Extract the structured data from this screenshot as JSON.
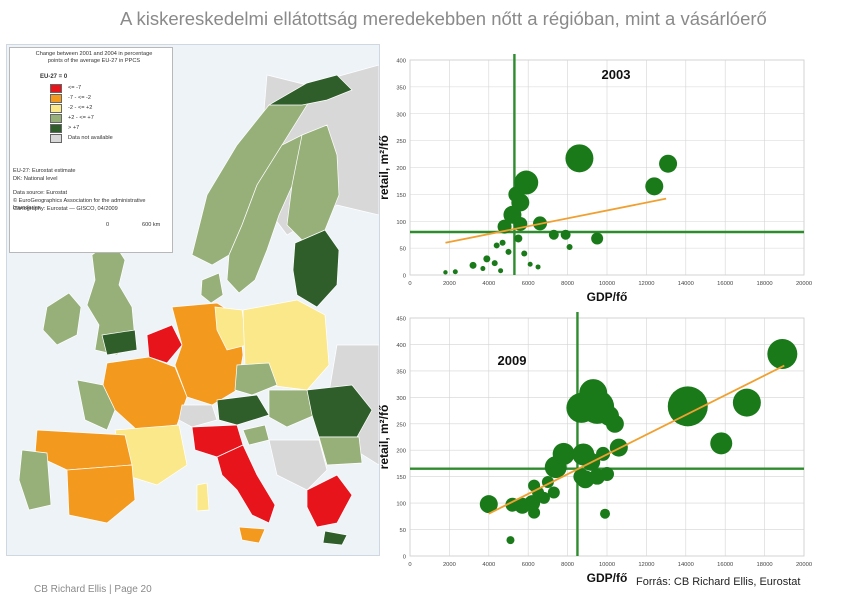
{
  "slide": {
    "title": "A kiskereskedelmi ellátottság meredekebben nőtt a régióban, mint a vásárlóerő",
    "footer_left": "CB Richard Ellis | Page 20",
    "footer_right": "Forrás: CB Richard Ellis, Eurostat"
  },
  "map": {
    "legend_header": "Change between 2001 and 2004 in percentage points of the average EU-27 in PPCS",
    "legend_subtitle": "EU-27 = 0",
    "legend_items": [
      {
        "label": "<= -7",
        "color": "#e8141c"
      },
      {
        "label": "-7 - <= -2",
        "color": "#f39a1e"
      },
      {
        "label": "-2 - <= +2",
        "color": "#fbe88a"
      },
      {
        "label": "+2 - <= +7",
        "color": "#97b07a"
      },
      {
        "label": "> +7",
        "color": "#2f5e2a"
      },
      {
        "label": "Data not available",
        "color": "#d8d8d8"
      }
    ],
    "notes": [
      "EU-27: Eurostat estimate",
      "DK: National level",
      "Data source: Eurostat",
      "© EuroGeographics Association for the administrative boundaries",
      "Cartography: Eurostat — GISCO, 04/2009"
    ],
    "scale_label": "600 km",
    "scale_zero": "0",
    "colors": {
      "sea": "#eef3f8",
      "outside": "#d8d8d8",
      "border": "#ffffff"
    }
  },
  "chart_data": [
    {
      "type": "scatter",
      "title": "2003",
      "xlabel": "GDP/fő",
      "ylabel": "retail, m²/fő",
      "xlim": [
        0,
        20000
      ],
      "ylim": [
        0,
        400
      ],
      "xticks": [
        0,
        2000,
        4000,
        6000,
        8000,
        10000,
        12000,
        14000,
        16000,
        18000,
        20000
      ],
      "yticks": [
        0,
        50,
        100,
        150,
        200,
        250,
        300,
        350,
        400
      ],
      "grid": true,
      "reference_lines": {
        "x": 5300,
        "y": 80
      },
      "trendline": {
        "x": [
          1800,
          13000
        ],
        "y": [
          60,
          142
        ]
      },
      "point_color": "#1a7a1a",
      "trend_color": "#f0a030",
      "ref_color": "#2e8b2e",
      "points": [
        {
          "x": 1800,
          "y": 5,
          "r": 2.2
        },
        {
          "x": 2300,
          "y": 6,
          "r": 2.5
        },
        {
          "x": 3200,
          "y": 18,
          "r": 3.5
        },
        {
          "x": 3900,
          "y": 30,
          "r": 3.5
        },
        {
          "x": 3700,
          "y": 12,
          "r": 2.5
        },
        {
          "x": 4300,
          "y": 22,
          "r": 3
        },
        {
          "x": 4600,
          "y": 8,
          "r": 2.5
        },
        {
          "x": 4400,
          "y": 55,
          "r": 3
        },
        {
          "x": 4700,
          "y": 60,
          "r": 3
        },
        {
          "x": 5000,
          "y": 43,
          "r": 3
        },
        {
          "x": 4800,
          "y": 90,
          "r": 7
        },
        {
          "x": 5200,
          "y": 112,
          "r": 9
        },
        {
          "x": 5600,
          "y": 135,
          "r": 9
        },
        {
          "x": 5400,
          "y": 150,
          "r": 8
        },
        {
          "x": 5900,
          "y": 172,
          "r": 12
        },
        {
          "x": 5600,
          "y": 95,
          "r": 7
        },
        {
          "x": 5500,
          "y": 68,
          "r": 4
        },
        {
          "x": 5800,
          "y": 40,
          "r": 3
        },
        {
          "x": 6100,
          "y": 20,
          "r": 2.5
        },
        {
          "x": 6500,
          "y": 15,
          "r": 2.5
        },
        {
          "x": 6600,
          "y": 96,
          "r": 7
        },
        {
          "x": 7300,
          "y": 75,
          "r": 5
        },
        {
          "x": 7900,
          "y": 75,
          "r": 5
        },
        {
          "x": 8100,
          "y": 52,
          "r": 3
        },
        {
          "x": 8600,
          "y": 217,
          "r": 14
        },
        {
          "x": 9500,
          "y": 68,
          "r": 6
        },
        {
          "x": 12400,
          "y": 165,
          "r": 9
        },
        {
          "x": 13100,
          "y": 207,
          "r": 9
        }
      ]
    },
    {
      "type": "scatter",
      "title": "2009",
      "xlabel": "GDP/fő",
      "ylabel": "retail, m²/fő",
      "xlim": [
        0,
        20000
      ],
      "ylim": [
        0,
        450
      ],
      "xticks": [
        0,
        2000,
        4000,
        6000,
        8000,
        10000,
        12000,
        14000,
        16000,
        18000,
        20000
      ],
      "yticks": [
        0,
        50,
        100,
        150,
        200,
        250,
        300,
        350,
        400,
        450
      ],
      "grid": true,
      "reference_lines": {
        "x": 8500,
        "y": 165
      },
      "trendline": {
        "x": [
          4000,
          19000
        ],
        "y": [
          80,
          360
        ]
      },
      "point_color": "#1a7a1a",
      "trend_color": "#f0a030",
      "ref_color": "#2e8b2e",
      "points": [
        {
          "x": 5100,
          "y": 30,
          "r": 4
        },
        {
          "x": 4000,
          "y": 98,
          "r": 9
        },
        {
          "x": 5200,
          "y": 97,
          "r": 7
        },
        {
          "x": 5700,
          "y": 95,
          "r": 8
        },
        {
          "x": 6200,
          "y": 100,
          "r": 8
        },
        {
          "x": 6300,
          "y": 82,
          "r": 6
        },
        {
          "x": 6500,
          "y": 120,
          "r": 6
        },
        {
          "x": 6800,
          "y": 110,
          "r": 6
        },
        {
          "x": 6300,
          "y": 133,
          "r": 6
        },
        {
          "x": 7000,
          "y": 140,
          "r": 6
        },
        {
          "x": 7300,
          "y": 120,
          "r": 6
        },
        {
          "x": 7400,
          "y": 168,
          "r": 11
        },
        {
          "x": 7800,
          "y": 193,
          "r": 11
        },
        {
          "x": 8700,
          "y": 150,
          "r": 8
        },
        {
          "x": 8800,
          "y": 192,
          "r": 11
        },
        {
          "x": 8900,
          "y": 145,
          "r": 9
        },
        {
          "x": 9200,
          "y": 178,
          "r": 9
        },
        {
          "x": 9500,
          "y": 150,
          "r": 8
        },
        {
          "x": 10000,
          "y": 155,
          "r": 7
        },
        {
          "x": 9800,
          "y": 193,
          "r": 7
        },
        {
          "x": 10600,
          "y": 205,
          "r": 9
        },
        {
          "x": 9900,
          "y": 80,
          "r": 5
        },
        {
          "x": 8700,
          "y": 280,
          "r": 15
        },
        {
          "x": 9300,
          "y": 308,
          "r": 14
        },
        {
          "x": 9500,
          "y": 282,
          "r": 17
        },
        {
          "x": 10100,
          "y": 265,
          "r": 10
        },
        {
          "x": 10400,
          "y": 250,
          "r": 9
        },
        {
          "x": 14100,
          "y": 283,
          "r": 20
        },
        {
          "x": 15800,
          "y": 213,
          "r": 11
        },
        {
          "x": 17100,
          "y": 290,
          "r": 14
        },
        {
          "x": 18900,
          "y": 382,
          "r": 15
        }
      ]
    }
  ]
}
